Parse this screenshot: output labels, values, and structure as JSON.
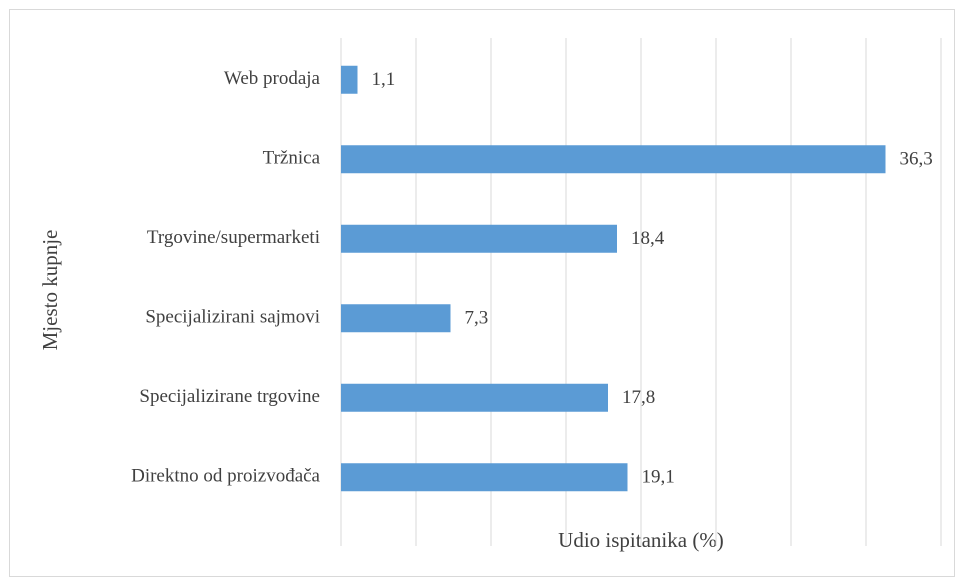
{
  "chart_data": {
    "type": "bar",
    "orientation": "horizontal",
    "y_label": "Mjesto kupnje",
    "x_label": "Udio ispitanika (%)",
    "categories": [
      "Web prodaja",
      "Tržnica",
      "Trgovine/supermarketi",
      "Specijalizirani sajmovi",
      "Specijalizirane trgovine",
      "Direktno od proizvođača"
    ],
    "values": [
      1.1,
      36.3,
      18.4,
      7.3,
      17.8,
      19.1
    ],
    "value_labels": [
      "1,1",
      "36,3",
      "18,4",
      "7,3",
      "17,8",
      "19,1"
    ],
    "color": "#5b9bd5",
    "xlim": [
      0,
      40
    ],
    "xticks": [
      0,
      5,
      10,
      15,
      20,
      25,
      30,
      35,
      40
    ],
    "grid": true
  }
}
